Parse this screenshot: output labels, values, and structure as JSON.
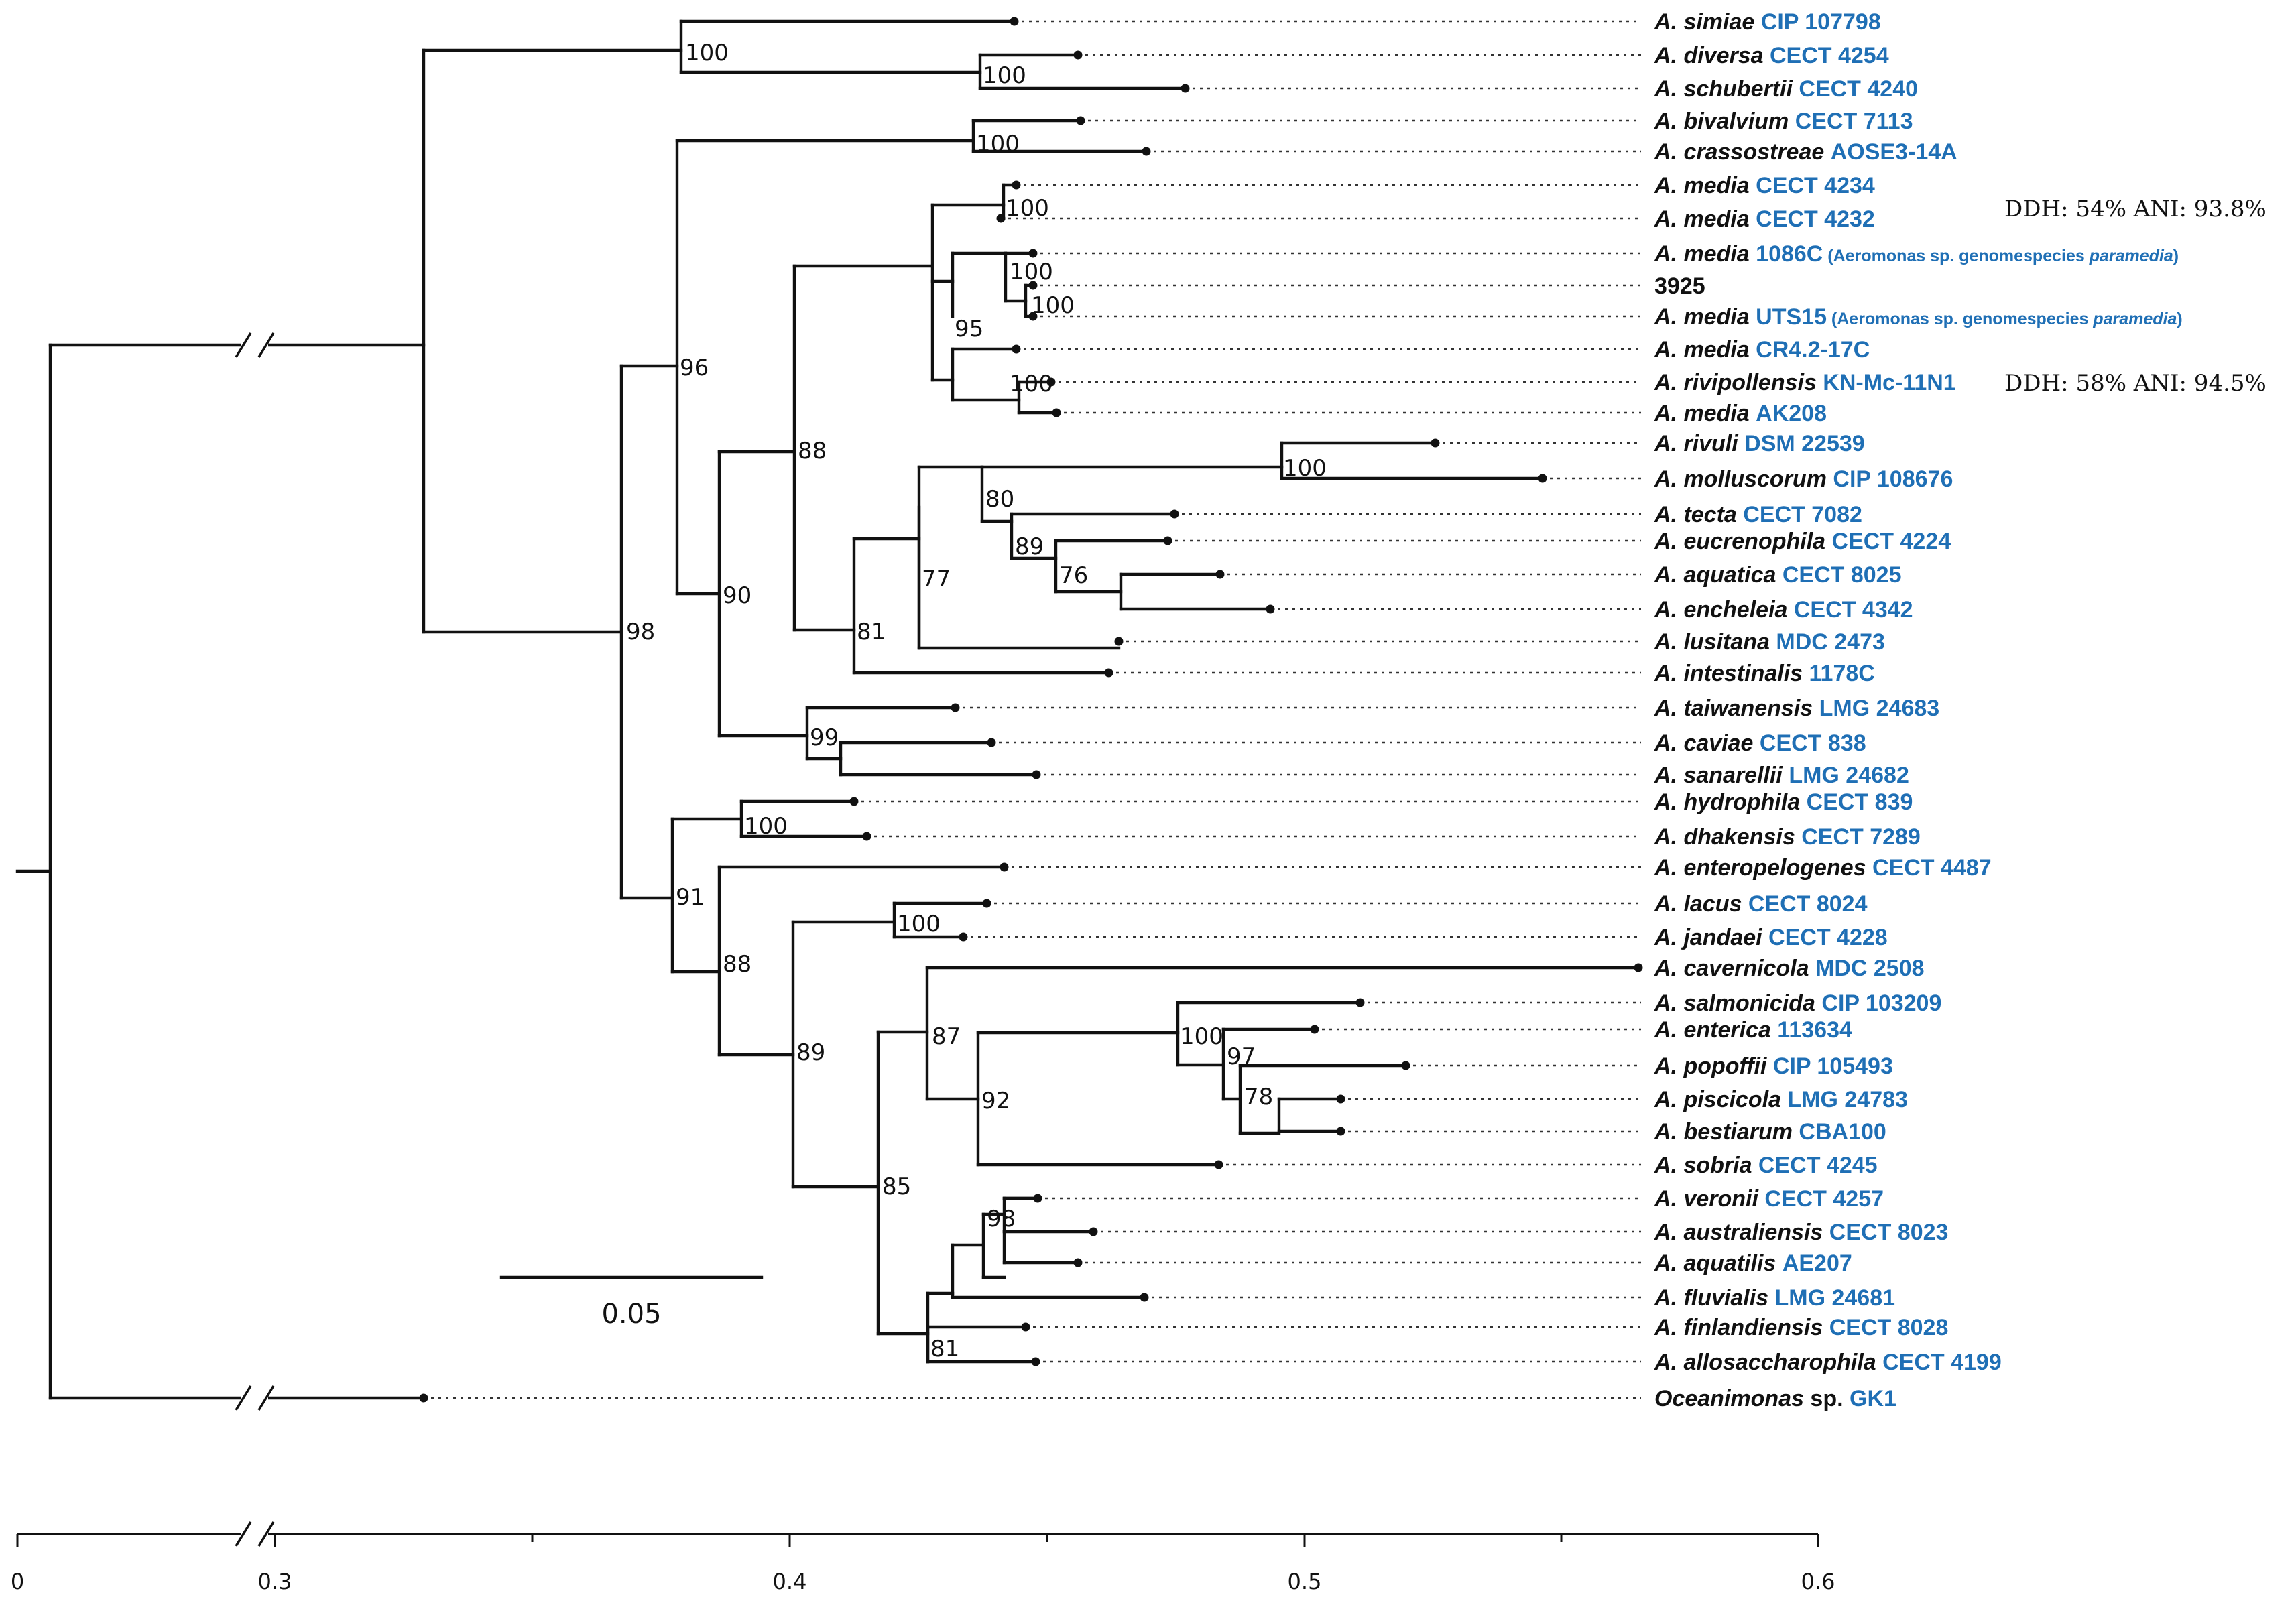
{
  "tips": [
    {
      "species": "A. simiae",
      "strain": "CIP 107798"
    },
    {
      "species": "A. diversa",
      "strain": "CECT 4254"
    },
    {
      "species": "A. schubertii",
      "strain": "CECT 4240"
    },
    {
      "species": "A. bivalvium",
      "strain": "CECT 7113"
    },
    {
      "species": "A. crassostreae",
      "strain": "AOSE3-14A"
    },
    {
      "species": "A. media",
      "strain": "CECT 4234"
    },
    {
      "species": "A. media",
      "strain": "CECT 4232"
    },
    {
      "species": "A. media",
      "strain": "1086C",
      "note_pre": "(Aeromonas sp. genomespecies ",
      "note_it": "paramedia",
      "note_post": ")"
    },
    {
      "species": "",
      "strain": "",
      "plain": "3925"
    },
    {
      "species": "A. media",
      "strain": "UTS15",
      "note_pre": "(Aeromonas sp. genomespecies ",
      "note_it": "paramedia",
      "note_post": ")"
    },
    {
      "species": "A. media",
      "strain": "CR4.2-17C"
    },
    {
      "species": "A. rivipollensis",
      "strain": "KN-Mc-11N1"
    },
    {
      "species": "A. media",
      "strain": "AK208"
    },
    {
      "species": "A. rivuli",
      "strain": "DSM 22539"
    },
    {
      "species": "A. molluscorum",
      "strain": "CIP 108676"
    },
    {
      "species": "A. tecta",
      "strain": "CECT 7082"
    },
    {
      "species": "A. eucrenophila",
      "strain": "CECT 4224"
    },
    {
      "species": "A. aquatica",
      "strain": "CECT 8025"
    },
    {
      "species": "A. encheleia",
      "strain": "CECT 4342"
    },
    {
      "species": "A. lusitana",
      "strain": "MDC 2473"
    },
    {
      "species": "A. intestinalis",
      "strain": "1178C"
    },
    {
      "species": "A. taiwanensis",
      "strain": "LMG 24683"
    },
    {
      "species": "A. caviae",
      "strain": "CECT 838"
    },
    {
      "species": "A. sanarellii",
      "strain": "LMG 24682"
    },
    {
      "species": "A. hydrophila",
      "strain": "CECT 839"
    },
    {
      "species": "A. dhakensis",
      "strain": "CECT 7289"
    },
    {
      "species": "A. enteropelogenes",
      "strain": "CECT 4487"
    },
    {
      "species": "A. lacus",
      "strain": "CECT 8024"
    },
    {
      "species": "A. jandaei",
      "strain": "CECT 4228"
    },
    {
      "species": "A. cavernicola",
      "strain": "MDC 2508"
    },
    {
      "species": "A. salmonicida",
      "strain": "CIP 103209"
    },
    {
      "species": "A. enterica",
      "strain": "113634"
    },
    {
      "species": "A. popoffii",
      "strain": "CIP 105493"
    },
    {
      "species": "A. piscicola",
      "strain": "LMG 24783"
    },
    {
      "species": "A. bestiarum",
      "strain": "CBA100"
    },
    {
      "species": "A. sobria",
      "strain": "CECT 4245"
    },
    {
      "species": "A. veronii",
      "strain": "CECT 4257"
    },
    {
      "species": "A. australiensis",
      "strain": "CECT 8023"
    },
    {
      "species": "A. aquatilis",
      "strain": "AE207"
    },
    {
      "species": "A. fluvialis",
      "strain": "LMG 24681"
    },
    {
      "species": "A. finlandiensis",
      "strain": "CECT 8028"
    },
    {
      "species": "A. allosaccharophila",
      "strain": "CECT 4199"
    },
    {
      "species": "Oceanimonas",
      "species_tail": " sp.",
      "strain": "GK1"
    }
  ],
  "bootstrap": [
    "100",
    "100",
    "100",
    "100",
    "100",
    "100",
    "95",
    "100",
    "96",
    "88",
    "100",
    "80",
    "89",
    "76",
    "77",
    "81",
    "90",
    "99",
    "98",
    "100",
    "91",
    "88",
    "100",
    "89",
    "87",
    "92",
    "100",
    "97",
    "78",
    "85",
    "98",
    "81"
  ],
  "annotations": {
    "first": "DDH: 54%  ANI: 93.8%",
    "second": "DDH: 58%  ANI: 94.5%"
  },
  "scale_bar": {
    "label": "0.05",
    "value": 0.05
  },
  "axis": {
    "ticks": [
      "0",
      "0.3",
      "0.4",
      "0.5",
      "0.6"
    ]
  },
  "colors": {
    "strain": "#1f6fb5",
    "text": "#111111"
  }
}
